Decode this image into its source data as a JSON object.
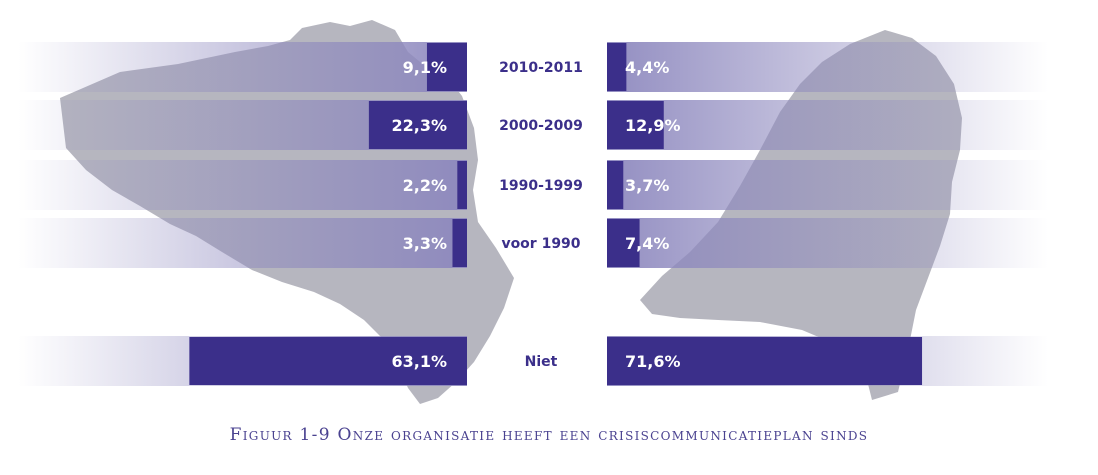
{
  "chart_data": {
    "type": "bar",
    "categories": [
      "2010-2011",
      "2000-2009",
      "1990-1999",
      "voor 1990",
      "Niet"
    ],
    "series": [
      {
        "values": [
          9.1,
          22.3,
          2.2,
          3.3,
          63.1
        ],
        "labels": [
          "9,1%",
          "22,3%",
          "2,2%",
          "3,3%",
          "63,1%"
        ]
      },
      {
        "values": [
          4.4,
          12.9,
          3.7,
          7.4,
          71.6
        ],
        "labels": [
          "4,4%",
          "12,9%",
          "3,7%",
          "7,4%",
          "71,6%"
        ]
      }
    ],
    "xlim": [
      0,
      100
    ],
    "bar_color": "#3b2f8a",
    "track_color": "#8d88be",
    "label_color": "#ffffff",
    "category_color": "#3b2f8a",
    "background_map": "map-silhouettes"
  },
  "caption": "Figuur 1-9 Onze organisatie heeft een crisiscommunicatieplan sinds"
}
